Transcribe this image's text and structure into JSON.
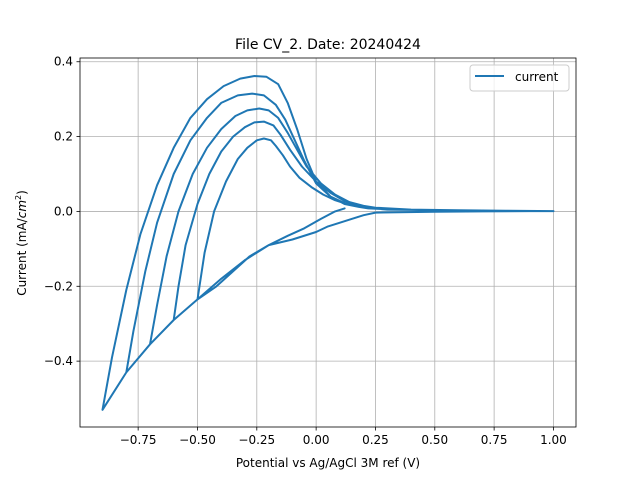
{
  "chart_data": {
    "type": "line",
    "title": "File CV_2. Date: 20240424",
    "xlabel": "Potential vs Ag/AgCl 3M ref (V)",
    "ylabel_prefix": "Current (mA/",
    "ylabel_unit_base": "cm",
    "ylabel_unit_exp": "2",
    "ylabel_suffix": ")",
    "xlim": [
      -0.995,
      1.095
    ],
    "ylim": [
      -0.576,
      0.41
    ],
    "xticks": [
      -0.75,
      -0.5,
      -0.25,
      0.0,
      0.25,
      0.5,
      0.75,
      1.0
    ],
    "xtick_labels": [
      "−0.75",
      "−0.50",
      "−0.25",
      "0.00",
      "0.25",
      "0.50",
      "0.75",
      "1.00"
    ],
    "yticks": [
      -0.4,
      -0.2,
      0.0,
      0.2,
      0.4
    ],
    "ytick_labels": [
      "−0.4",
      "−0.2",
      "0.0",
      "0.2",
      "0.4"
    ],
    "grid": true,
    "legend_position": "top-right",
    "colors": {
      "series": "#1f77b4",
      "grid": "#b0b0b0",
      "frame": "#000000"
    },
    "series": [
      {
        "name": "current",
        "x": [
          0.12,
          0.08,
          0.02,
          -0.05,
          -0.12,
          -0.2,
          -0.28,
          -0.35,
          -0.42,
          -0.5,
          -0.5,
          -0.47,
          -0.43,
          -0.38,
          -0.33,
          -0.29,
          -0.25,
          -0.22,
          -0.19,
          -0.17,
          -0.14,
          -0.11,
          -0.07,
          -0.02,
          0.03,
          0.08,
          0.13,
          0.18,
          0.22,
          0.3,
          0.4,
          0.5,
          0.6,
          0.7,
          0.8,
          0.9,
          1.0,
          0.9,
          0.7,
          0.5,
          0.35,
          0.25,
          0.2,
          0.15,
          0.1,
          0.05,
          0.0,
          -0.1,
          -0.2,
          -0.3,
          -0.4,
          -0.5,
          -0.6,
          -0.6,
          -0.58,
          -0.55,
          -0.5,
          -0.45,
          -0.4,
          -0.35,
          -0.3,
          -0.26,
          -0.22,
          -0.18,
          -0.15,
          -0.11,
          -0.06,
          0.0,
          0.06,
          0.12,
          0.18,
          0.22,
          0.3,
          0.5,
          0.7,
          1.0,
          0.9,
          0.7,
          0.5,
          0.35,
          0.25,
          0.2,
          0.15,
          0.1,
          0.05,
          0.0,
          -0.1,
          -0.2,
          -0.3,
          -0.4,
          -0.5,
          -0.6,
          -0.7,
          -0.7,
          -0.67,
          -0.63,
          -0.58,
          -0.52,
          -0.46,
          -0.4,
          -0.34,
          -0.29,
          -0.24,
          -0.2,
          -0.16,
          -0.12,
          -0.08,
          -0.04,
          0.02,
          0.08,
          0.14,
          0.2,
          0.25,
          0.4,
          0.6,
          0.8,
          1.0,
          0.9,
          0.7,
          0.5,
          0.35,
          0.25,
          0.2,
          0.15,
          0.1,
          0.05,
          0.0,
          -0.1,
          -0.2,
          -0.3,
          -0.4,
          -0.5,
          -0.6,
          -0.7,
          -0.8,
          -0.8,
          -0.77,
          -0.72,
          -0.67,
          -0.6,
          -0.53,
          -0.46,
          -0.4,
          -0.33,
          -0.27,
          -0.22,
          -0.17,
          -0.13,
          -0.09,
          -0.05,
          0.0,
          0.06,
          0.12,
          0.18,
          0.24,
          0.4,
          0.6,
          0.8,
          1.0,
          0.9,
          0.7,
          0.5,
          0.35,
          0.25,
          0.2,
          0.15,
          0.1,
          0.05,
          0.0,
          -0.1,
          -0.2,
          -0.3,
          -0.4,
          -0.5,
          -0.6,
          -0.7,
          -0.8,
          -0.9,
          -0.9,
          -0.86,
          -0.8,
          -0.74,
          -0.67,
          -0.6,
          -0.53,
          -0.46,
          -0.39,
          -0.32,
          -0.26,
          -0.21,
          -0.16,
          -0.12,
          -0.08,
          -0.04,
          0.0,
          0.06,
          0.12,
          0.18,
          0.24,
          0.3,
          0.4,
          0.6,
          0.8,
          1.0
        ],
        "y": [
          0.008,
          0.0,
          -0.02,
          -0.045,
          -0.065,
          -0.09,
          -0.12,
          -0.16,
          -0.2,
          -0.235,
          -0.235,
          -0.11,
          0.0,
          0.08,
          0.14,
          0.17,
          0.19,
          0.195,
          0.19,
          0.175,
          0.15,
          0.12,
          0.09,
          0.065,
          0.045,
          0.03,
          0.02,
          0.012,
          0.008,
          0.006,
          0.004,
          0.003,
          0.002,
          0.002,
          0.001,
          0.001,
          0.001,
          0.001,
          0.0,
          -0.001,
          -0.002,
          -0.003,
          -0.01,
          -0.02,
          -0.03,
          -0.04,
          -0.055,
          -0.075,
          -0.09,
          -0.13,
          -0.18,
          -0.235,
          -0.29,
          -0.29,
          -0.2,
          -0.09,
          0.02,
          0.1,
          0.16,
          0.2,
          0.225,
          0.238,
          0.24,
          0.23,
          0.205,
          0.165,
          0.12,
          0.08,
          0.05,
          0.028,
          0.016,
          0.01,
          0.006,
          0.003,
          0.002,
          0.001,
          0.001,
          0.0,
          -0.001,
          -0.002,
          -0.003,
          -0.01,
          -0.02,
          -0.03,
          -0.04,
          -0.055,
          -0.075,
          -0.09,
          -0.13,
          -0.18,
          -0.235,
          -0.29,
          -0.355,
          -0.355,
          -0.25,
          -0.12,
          0.0,
          0.1,
          0.17,
          0.22,
          0.255,
          0.27,
          0.275,
          0.27,
          0.25,
          0.21,
          0.165,
          0.12,
          0.075,
          0.045,
          0.025,
          0.015,
          0.01,
          0.005,
          0.003,
          0.002,
          0.001,
          0.001,
          0.0,
          -0.001,
          -0.002,
          -0.003,
          -0.01,
          -0.02,
          -0.03,
          -0.04,
          -0.055,
          -0.075,
          -0.09,
          -0.13,
          -0.18,
          -0.235,
          -0.29,
          -0.355,
          -0.43,
          -0.43,
          -0.32,
          -0.16,
          -0.03,
          0.1,
          0.19,
          0.25,
          0.29,
          0.31,
          0.315,
          0.31,
          0.285,
          0.245,
          0.19,
          0.135,
          0.075,
          0.04,
          0.022,
          0.013,
          0.008,
          0.005,
          0.003,
          0.002,
          0.001,
          0.001,
          0.0,
          -0.001,
          -0.002,
          -0.003,
          -0.01,
          -0.02,
          -0.03,
          -0.04,
          -0.055,
          -0.075,
          -0.09,
          -0.13,
          -0.18,
          -0.235,
          -0.29,
          -0.355,
          -0.43,
          -0.53,
          -0.53,
          -0.39,
          -0.21,
          -0.06,
          0.07,
          0.17,
          0.25,
          0.3,
          0.335,
          0.355,
          0.362,
          0.36,
          0.34,
          0.29,
          0.22,
          0.14,
          0.08,
          0.04,
          0.02,
          0.012,
          0.008,
          0.005,
          0.004,
          0.003,
          0.002,
          0.001
        ]
      }
    ]
  }
}
